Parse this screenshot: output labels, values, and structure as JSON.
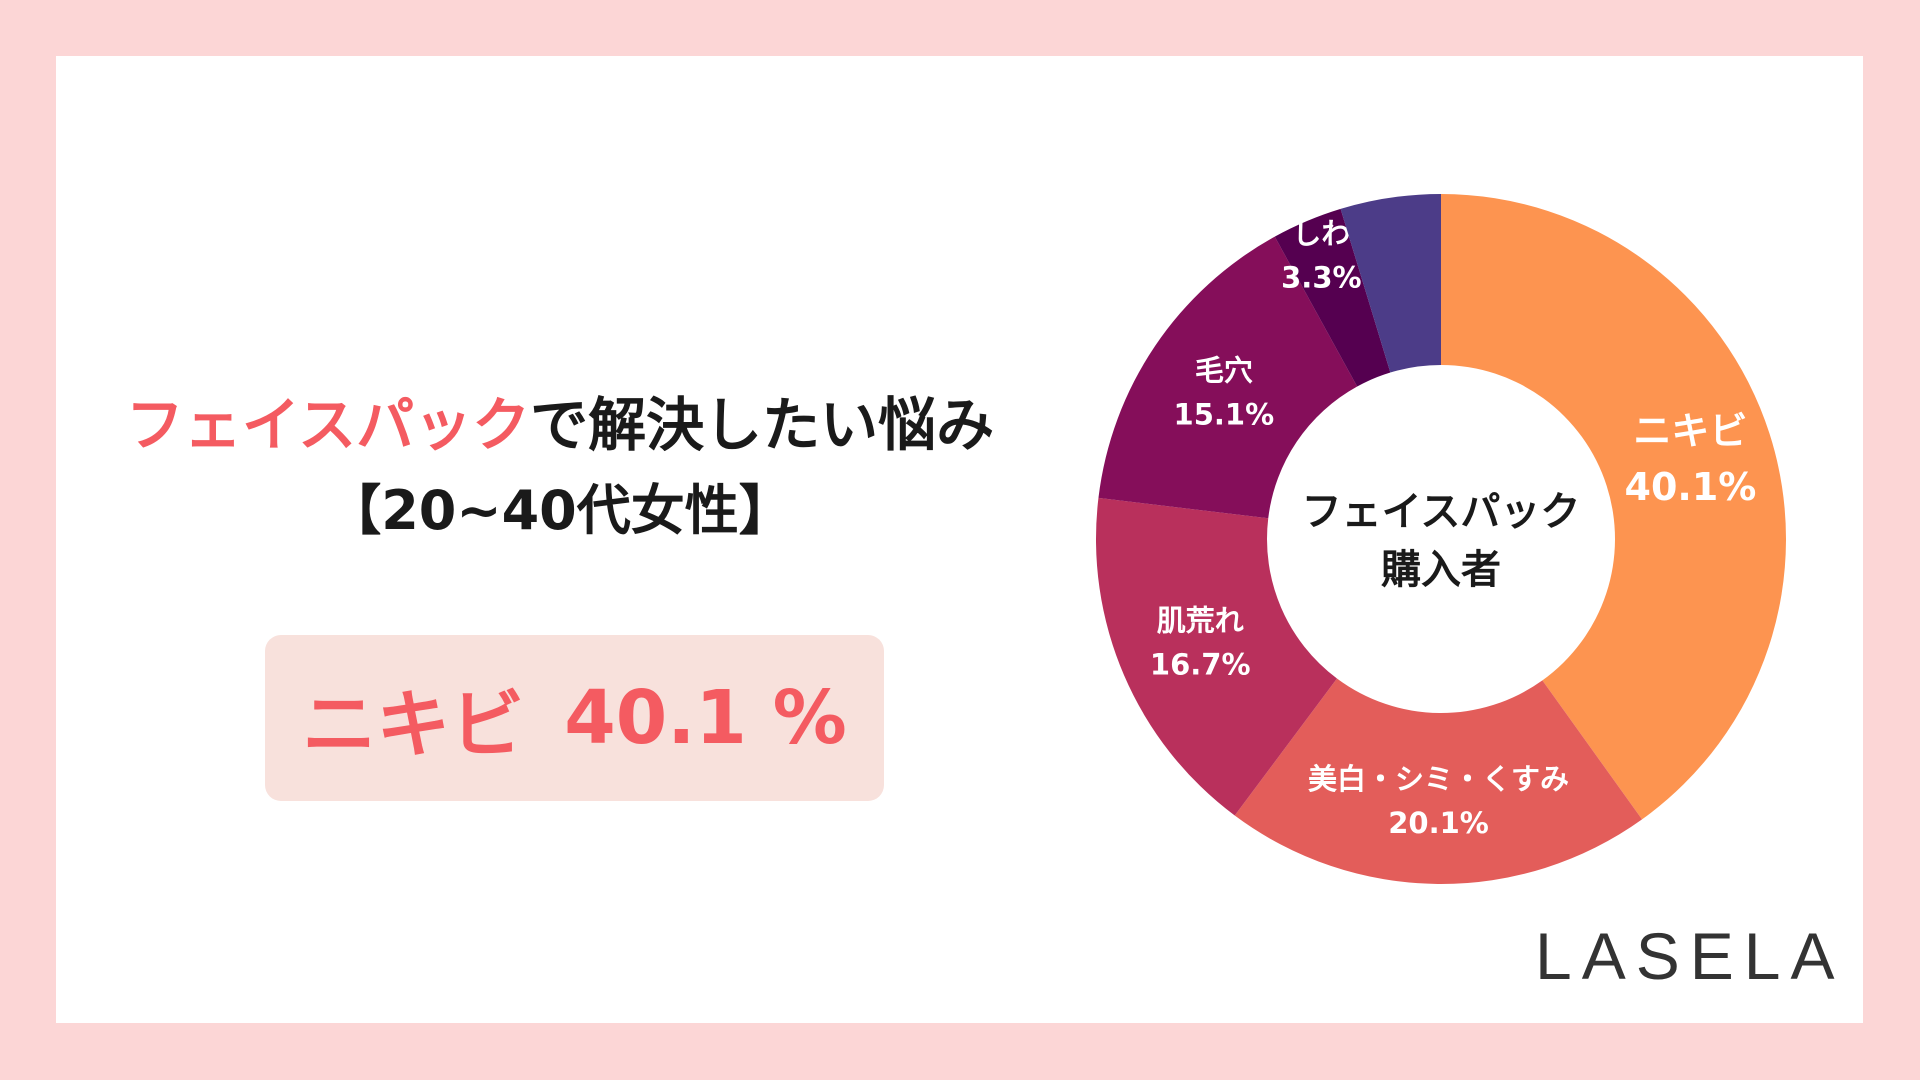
{
  "title": {
    "accent": "フェイスパック",
    "rest": "で解決したい悩み",
    "line2": "【20~40代女性】"
  },
  "highlight": {
    "label": "ニキビ",
    "value": "40.1 %"
  },
  "logo": "LASELA",
  "colors": {
    "background": "#fcd6d6",
    "accent": "#f45b61",
    "highlight_box": "#f8e1dc"
  },
  "chart_data": {
    "type": "pie",
    "center_label": [
      "フェイスパック",
      "購入者"
    ],
    "categories": [
      "ニキビ",
      "美白・シミ・くすみ",
      "肌荒れ",
      "毛穴",
      "しわ",
      ""
    ],
    "values": [
      40.1,
      20.1,
      16.7,
      15.1,
      3.3,
      4.7
    ],
    "labels": [
      "40.1%",
      "20.1%",
      "16.7%",
      "15.1%",
      "3.3%",
      ""
    ],
    "colors": [
      "#fd9450",
      "#e35d5a",
      "#b9305c",
      "#850e5a",
      "#550050",
      "#4c3c88"
    ]
  }
}
